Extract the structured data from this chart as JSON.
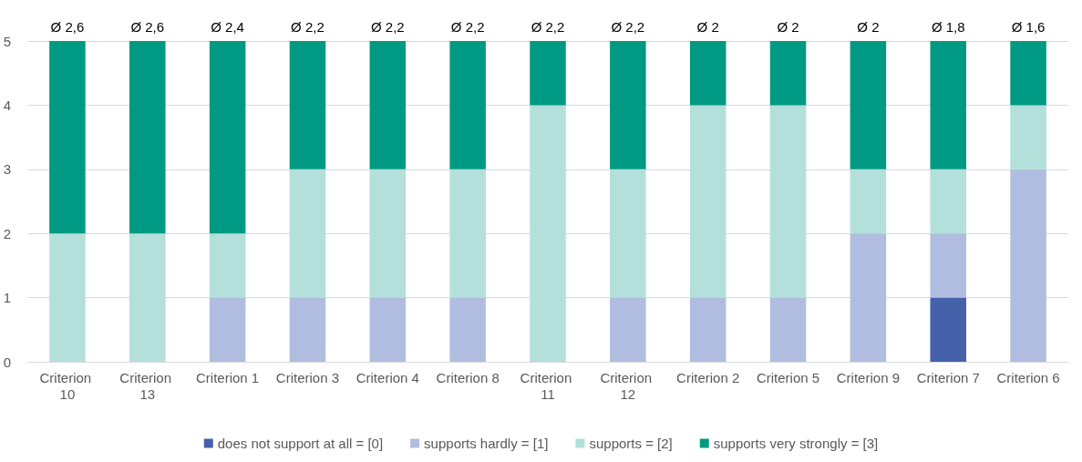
{
  "chart_data": {
    "type": "bar",
    "stacked": true,
    "categories": [
      "Criterion 10",
      "Criterion 13",
      "Criterion 1",
      "Criterion 3",
      "Criterion 4",
      "Criterion 8",
      "Criterion 11",
      "Criterion 12",
      "Criterion 2",
      "Criterion 5",
      "Criterion 9",
      "Criterion 7",
      "Criterion 6"
    ],
    "series": [
      {
        "name": "does not support at all = [0]",
        "color": "#4461aa",
        "values": [
          0,
          0,
          0,
          0,
          0,
          0,
          0,
          0,
          0,
          0,
          0,
          1,
          0
        ]
      },
      {
        "name": "supports hardly = [1]",
        "color": "#b1bde0",
        "values": [
          0,
          0,
          1,
          1,
          1,
          1,
          0,
          1,
          1,
          1,
          2,
          1,
          3
        ]
      },
      {
        "name": "supports = [2]",
        "color": "#b3e0da",
        "values": [
          2,
          2,
          1,
          2,
          2,
          2,
          4,
          2,
          3,
          3,
          1,
          1,
          1
        ]
      },
      {
        "name": "supports very strongly = [3]",
        "color": "#009a84",
        "values": [
          3,
          3,
          3,
          2,
          2,
          2,
          1,
          2,
          1,
          1,
          2,
          2,
          1
        ]
      }
    ],
    "totals": [
      "Ø 2,6",
      "Ø 2,6",
      "Ø 2,4",
      "Ø 2,2",
      "Ø 2,2",
      "Ø 2,2",
      "Ø 2,2",
      "Ø 2,2",
      "Ø 2",
      "Ø 2",
      "Ø 2",
      "Ø 1,8",
      "Ø 1,6"
    ],
    "ylim": [
      0,
      5
    ],
    "yticks": [
      0,
      1,
      2,
      3,
      4,
      5
    ],
    "grid": "y",
    "legend": "bottom"
  }
}
